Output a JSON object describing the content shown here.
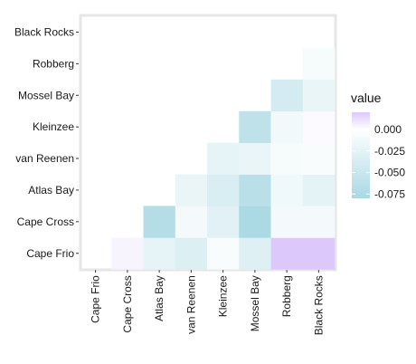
{
  "chart_data": {
    "type": "heatmap",
    "title": "",
    "xlabel": "",
    "ylabel": "",
    "x_categories": [
      "Cape Frio",
      "Cape Cross",
      "Atlas Bay",
      "van Reenen",
      "Kleinzee",
      "Mossel Bay",
      "Robberg",
      "Black Rocks"
    ],
    "y_categories": [
      "Black Rocks",
      "Robberg",
      "Mossel Bay",
      "Kleinzee",
      "van Reenen",
      "Atlas Bay",
      "Cape Cross",
      "Cape Frio"
    ],
    "cells": [
      {
        "x": "Cape Cross",
        "y": "Cape Frio",
        "value": 0.004
      },
      {
        "x": "Atlas Bay",
        "y": "Cape Frio",
        "value": -0.022
      },
      {
        "x": "Atlas Bay",
        "y": "Cape Cross",
        "value": -0.07
      },
      {
        "x": "van Reenen",
        "y": "Cape Frio",
        "value": -0.033
      },
      {
        "x": "van Reenen",
        "y": "Cape Cross",
        "value": -0.01
      },
      {
        "x": "van Reenen",
        "y": "Atlas Bay",
        "value": -0.02
      },
      {
        "x": "Kleinzee",
        "y": "Cape Frio",
        "value": -0.006
      },
      {
        "x": "Kleinzee",
        "y": "Cape Cross",
        "value": -0.028
      },
      {
        "x": "Kleinzee",
        "y": "Atlas Bay",
        "value": -0.035
      },
      {
        "x": "Kleinzee",
        "y": "van Reenen",
        "value": -0.022
      },
      {
        "x": "Mossel Bay",
        "y": "Cape Frio",
        "value": -0.03
      },
      {
        "x": "Mossel Bay",
        "y": "Cape Cross",
        "value": -0.078
      },
      {
        "x": "Mossel Bay",
        "y": "Atlas Bay",
        "value": -0.065
      },
      {
        "x": "Mossel Bay",
        "y": "van Reenen",
        "value": -0.02
      },
      {
        "x": "Mossel Bay",
        "y": "Kleinzee",
        "value": -0.06
      },
      {
        "x": "Robberg",
        "y": "Cape Frio",
        "value": 0.02
      },
      {
        "x": "Robberg",
        "y": "Cape Cross",
        "value": -0.01
      },
      {
        "x": "Robberg",
        "y": "Atlas Bay",
        "value": -0.015
      },
      {
        "x": "Robberg",
        "y": "van Reenen",
        "value": -0.008
      },
      {
        "x": "Robberg",
        "y": "Kleinzee",
        "value": -0.012
      },
      {
        "x": "Robberg",
        "y": "Mossel Bay",
        "value": -0.04
      },
      {
        "x": "Black Rocks",
        "y": "Cape Frio",
        "value": 0.02
      },
      {
        "x": "Black Rocks",
        "y": "Cape Cross",
        "value": -0.01
      },
      {
        "x": "Black Rocks",
        "y": "Atlas Bay",
        "value": -0.025
      },
      {
        "x": "Black Rocks",
        "y": "van Reenen",
        "value": -0.006
      },
      {
        "x": "Black Rocks",
        "y": "Kleinzee",
        "value": 0.002
      },
      {
        "x": "Black Rocks",
        "y": "Mossel Bay",
        "value": -0.02
      },
      {
        "x": "Black Rocks",
        "y": "Robberg",
        "value": -0.008
      }
    ],
    "legend": {
      "title": "value",
      "position": "right",
      "breaks": [
        0.0,
        -0.025,
        -0.05,
        -0.075
      ],
      "labels": [
        "0.000",
        "-0.025",
        "-0.050",
        "-0.075"
      ],
      "range": [
        -0.08,
        0.02
      ]
    },
    "colors": {
      "low": "#a9d8e3",
      "mid": "#ffffff",
      "high": "#dcc8fb",
      "panel_border": "#e6e6e6",
      "axis_text": "#1a1a1a"
    },
    "grid": false
  }
}
